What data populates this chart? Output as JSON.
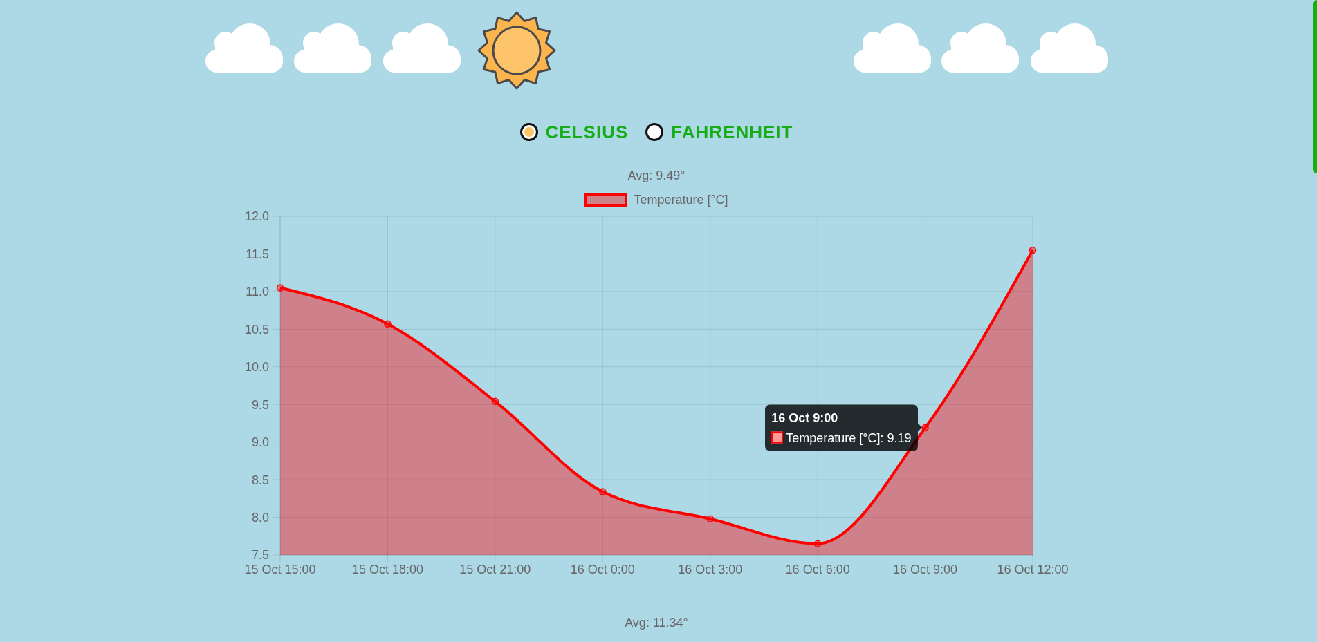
{
  "chart_data": [
    {
      "type": "other",
      "annotations": [
        "CELSIUS",
        "FAHRENHEIT"
      ]
    },
    {
      "type": "area",
      "title": "Avg: 9.49°",
      "categories": [
        "15 Oct 15:00",
        "15 Oct 18:00",
        "15 Oct 21:00",
        "16 Oct 0:00",
        "16 Oct 3:00",
        "16 Oct 6:00",
        "16 Oct 9:00",
        "16 Oct 12:00"
      ],
      "series": [
        {
          "name": "Temperature [°C]",
          "color": "#ff0000",
          "values": [
            11.05,
            10.57,
            9.54,
            8.34,
            7.98,
            7.65,
            9.19,
            11.55
          ]
        }
      ],
      "ylim": [
        7.5,
        12
      ],
      "yticks": [
        7.5,
        {
          "value": 8,
          "label": "8.0"
        },
        8.5,
        {
          "value": 9,
          "label": "9.0"
        },
        9.5,
        {
          "value": 10,
          "label": "10.0"
        },
        10.5,
        {
          "value": 11,
          "label": "11.0"
        },
        11.5,
        {
          "value": 12,
          "label": "12.0"
        }
      ],
      "grid": true,
      "legend": "top",
      "marker": "circle",
      "line_style": "solid",
      "annotations": [
        {
          "text": "16 Oct 9:00\nTemperature [°C]: 9.19",
          "x": "16 Oct 9:00",
          "y": 9.19
        }
      ]
    },
    {
      "type": "other",
      "title": "Avg: 11.34°"
    }
  ]
}
